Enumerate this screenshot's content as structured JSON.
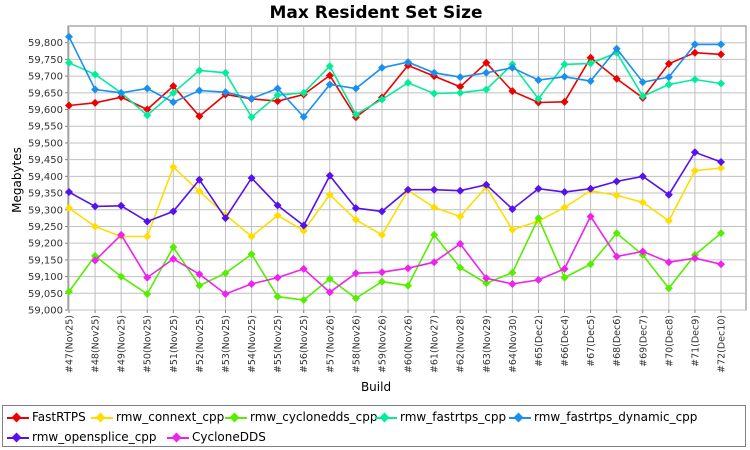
{
  "chart_data": {
    "type": "line",
    "title": "Max Resident Set Size",
    "xlabel": "Build",
    "ylabel": "Megabytes",
    "ylim": [
      59000,
      59850
    ],
    "yticks": [
      59000,
      59050,
      59100,
      59150,
      59200,
      59250,
      59300,
      59350,
      59400,
      59450,
      59500,
      59550,
      59600,
      59650,
      59700,
      59750,
      59800
    ],
    "ytick_labels": [
      "59,000",
      "59,050",
      "59,100",
      "59,150",
      "59,200",
      "59,250",
      "59,300",
      "59,350",
      "59,400",
      "59,450",
      "59,500",
      "59,550",
      "59,600",
      "59,650",
      "59,700",
      "59,750",
      "59,800"
    ],
    "categories": [
      "#47(Nov25)",
      "#48(Nov25)",
      "#49(Nov25)",
      "#50(Nov25)",
      "#51(Nov25)",
      "#52(Nov25)",
      "#53(Nov25)",
      "#54(Nov25)",
      "#55(Nov25)",
      "#56(Nov25)",
      "#57(Nov26)",
      "#58(Nov26)",
      "#59(Nov26)",
      "#60(Nov26)",
      "#61(Nov27)",
      "#62(Nov28)",
      "#63(Nov29)",
      "#64(Nov30)",
      "#65(Dec2)",
      "#66(Dec4)",
      "#67(Dec5)",
      "#68(Dec6)",
      "#69(Dec7)",
      "#70(Dec8)",
      "#71(Dec9)",
      "#72(Dec10)"
    ],
    "series": [
      {
        "name": "FastRTPS",
        "color": "#ee0000",
        "values": [
          59612,
          59620,
          59637,
          59600,
          59670,
          59580,
          59645,
          59632,
          59625,
          59645,
          59702,
          59577,
          59636,
          59732,
          59700,
          59668,
          59740,
          59655,
          59621,
          59623,
          59755,
          59692,
          59635,
          59737,
          59770,
          59765
        ]
      },
      {
        "name": "rmw_connext_cpp",
        "color": "#ffdd00",
        "values": [
          59305,
          59250,
          59220,
          59220,
          59428,
          59355,
          59285,
          59220,
          59283,
          59237,
          59345,
          59270,
          59225,
          59358,
          59307,
          59280,
          59368,
          59240,
          59266,
          59307,
          59357,
          59343,
          59322,
          59267,
          59417,
          59425
        ]
      },
      {
        "name": "rmw_cyclonedds_cpp",
        "color": "#55ee00",
        "values": [
          59055,
          59162,
          59100,
          59048,
          59188,
          59073,
          59110,
          59167,
          59040,
          59030,
          59093,
          59035,
          59085,
          59073,
          59225,
          59127,
          59080,
          59112,
          59275,
          59097,
          59137,
          59230,
          59165,
          59065,
          59165,
          59230
        ]
      },
      {
        "name": "rmw_fastrtps_cpp",
        "color": "#00ee99",
        "values": [
          59740,
          59705,
          59650,
          59583,
          59650,
          59717,
          59710,
          59577,
          59643,
          59650,
          59730,
          59585,
          59630,
          59680,
          59648,
          59650,
          59660,
          59735,
          59632,
          59735,
          59738,
          59770,
          59640,
          59675,
          59690,
          59678
        ]
      },
      {
        "name": "rmw_fastrtps_dynamic_cpp",
        "color": "#1a90ee",
        "values": [
          59818,
          59660,
          59650,
          59663,
          59622,
          59657,
          59652,
          59633,
          59663,
          59578,
          59675,
          59663,
          59725,
          59742,
          59710,
          59697,
          59710,
          59725,
          59688,
          59698,
          59685,
          59782,
          59682,
          59697,
          59795,
          59795
        ]
      },
      {
        "name": "rmw_opensplice_cpp",
        "color": "#5511ee",
        "values": [
          59353,
          59310,
          59312,
          59265,
          59295,
          59390,
          59275,
          59395,
          59313,
          59253,
          59402,
          59305,
          59295,
          59360,
          59360,
          59357,
          59375,
          59302,
          59363,
          59353,
          59363,
          59385,
          59400,
          59345,
          59472,
          59443
        ]
      },
      {
        "name": "CycloneDDS",
        "color": "#ee22ee",
        "values": [
          null,
          59148,
          59225,
          59097,
          59153,
          59107,
          59048,
          59078,
          59097,
          59123,
          59053,
          59110,
          59113,
          59125,
          59143,
          59198,
          59095,
          59078,
          59090,
          59123,
          59280,
          59160,
          59175,
          59143,
          59155,
          59137
        ]
      }
    ],
    "legend_position": "bottom"
  }
}
